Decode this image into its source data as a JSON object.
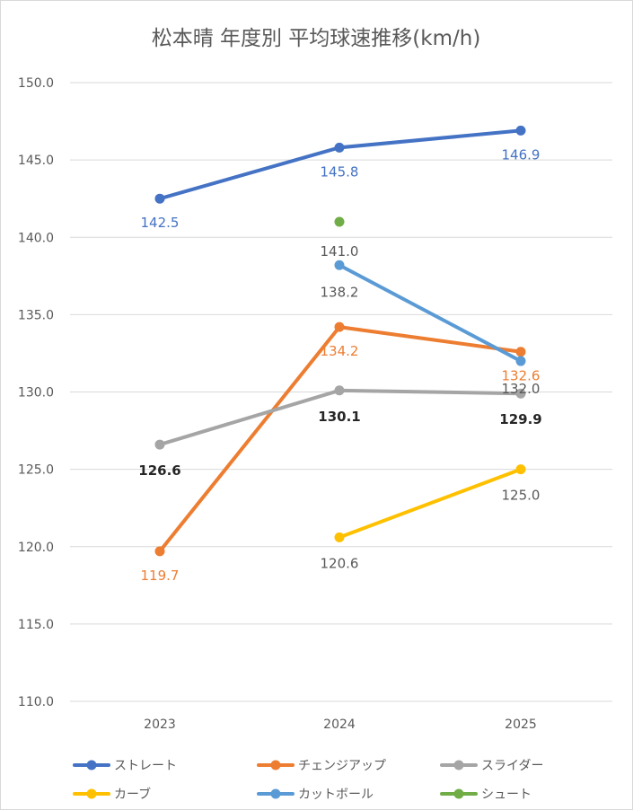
{
  "chart_data": {
    "type": "line",
    "title": "松本晴 年度別 平均球速推移(km/h)",
    "categories": [
      "2023",
      "2024",
      "2025"
    ],
    "ylim": [
      110,
      150
    ],
    "yticks": [
      "110.0",
      "115.0",
      "120.0",
      "125.0",
      "130.0",
      "135.0",
      "140.0",
      "145.0",
      "150.0"
    ],
    "grid": true,
    "legend_position": "bottom",
    "series": [
      {
        "name": "ストレート",
        "color": "#4472C4",
        "values": [
          142.5,
          145.8,
          146.9
        ],
        "labels": [
          "142.5",
          "145.8",
          "146.9"
        ],
        "label_color": "#4472C4",
        "label_weight": "normal"
      },
      {
        "name": "チェンジアップ",
        "color": "#ED7D31",
        "values": [
          119.7,
          134.2,
          132.6
        ],
        "labels": [
          "119.7",
          "134.2",
          "132.6"
        ],
        "label_color": "#ED7D31",
        "label_weight": "normal"
      },
      {
        "name": "スライダー",
        "color": "#A5A5A5",
        "values": [
          126.6,
          130.1,
          129.9
        ],
        "labels": [
          "126.6",
          "130.1",
          "129.9"
        ],
        "label_color": "#262626",
        "label_weight": "bold"
      },
      {
        "name": "カーブ",
        "color": "#FFC000",
        "values": [
          null,
          120.6,
          125.0
        ],
        "labels": [
          null,
          "120.6",
          "125.0"
        ],
        "label_color": "#595959",
        "label_weight": "normal"
      },
      {
        "name": "カットボール",
        "color": "#5B9BD5",
        "values": [
          null,
          138.2,
          132.0
        ],
        "labels": [
          null,
          "138.2",
          "132.0"
        ],
        "label_color": "#595959",
        "label_weight": "normal"
      },
      {
        "name": "シュート",
        "color": "#70AD47",
        "values": [
          null,
          141.0,
          null
        ],
        "labels": [
          null,
          "141.0",
          null
        ],
        "label_color": "#595959",
        "label_weight": "normal"
      }
    ]
  }
}
